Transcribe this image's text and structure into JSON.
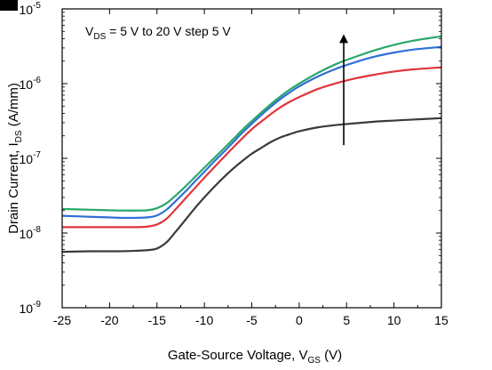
{
  "chart_data": {
    "type": "line",
    "xlabel": {
      "main": "Gate-Source Voltage, V",
      "sub": "GS",
      "unit": " (V)"
    },
    "ylabel": {
      "main": "Drain Current, I",
      "sub": "DS",
      "unit": " (A/mm)"
    },
    "xlim": [
      -25,
      15
    ],
    "ylim_log10": [
      -9,
      -5
    ],
    "yscale": "log",
    "x_ticks": [
      -25,
      -20,
      -15,
      -10,
      -5,
      0,
      5,
      10,
      15
    ],
    "x_tick_labels": [
      "-25",
      "-20",
      "-15",
      "-10",
      "-5",
      "0",
      "5",
      "10",
      "15"
    ],
    "y_ticks": [
      {
        "base": "10",
        "exp": "-9"
      },
      {
        "base": "10",
        "exp": "-8"
      },
      {
        "base": "10",
        "exp": "-7"
      },
      {
        "base": "10",
        "exp": "-6"
      },
      {
        "base": "10",
        "exp": "-5"
      }
    ],
    "annotation": {
      "pre": "V",
      "sub": "DS",
      "post": " = 5 V to 20 V step 5 V"
    },
    "arrow": {
      "x": 4.7,
      "y_from": 1.5e-07,
      "y_to": 4e-06
    },
    "grid": false,
    "legend": "none",
    "series": [
      {
        "color": "#3a3a3a",
        "x": [
          -25,
          -22,
          -19,
          -17,
          -16,
          -15,
          -14,
          -13,
          -12,
          -11,
          -10,
          -9,
          -8,
          -7,
          -6,
          -5,
          -4,
          -3,
          -2,
          -1,
          0,
          2,
          4,
          6,
          8,
          10,
          12,
          15
        ],
        "y": [
          5.6e-09,
          5.7e-09,
          5.7e-09,
          5.8e-09,
          5.9e-09,
          6.2e-09,
          7.5e-09,
          1.05e-08,
          1.5e-08,
          2.15e-08,
          3e-08,
          4.1e-08,
          5.5e-08,
          7.2e-08,
          9.2e-08,
          1.15e-07,
          1.38e-07,
          1.65e-07,
          1.9e-07,
          2.1e-07,
          2.3e-07,
          2.6e-07,
          2.8e-07,
          2.95e-07,
          3.1e-07,
          3.2e-07,
          3.3e-07,
          3.45e-07
        ]
      },
      {
        "color": "#e0353a",
        "x": [
          -25,
          -22,
          -19,
          -17,
          -16,
          -15,
          -14,
          -13,
          -12,
          -11,
          -10,
          -9,
          -8,
          -7,
          -6,
          -5,
          -4,
          -3,
          -2,
          -1,
          0,
          2,
          4,
          6,
          8,
          10,
          12,
          15
        ],
        "y": [
          1.2e-08,
          1.2e-08,
          1.2e-08,
          1.2e-08,
          1.22e-08,
          1.3e-08,
          1.55e-08,
          2.1e-08,
          2.9e-08,
          4e-08,
          5.5e-08,
          7.5e-08,
          1.02e-07,
          1.38e-07,
          1.85e-07,
          2.45e-07,
          3.1e-07,
          3.9e-07,
          4.8e-07,
          5.7e-07,
          6.6e-07,
          8.5e-07,
          1.02e-06,
          1.18e-06,
          1.32e-06,
          1.45e-06,
          1.55e-06,
          1.65e-06
        ]
      },
      {
        "color": "#2f6fd6",
        "x": [
          -25,
          -22,
          -19,
          -17,
          -16,
          -15,
          -14,
          -13,
          -12,
          -11,
          -10,
          -9,
          -8,
          -7,
          -6,
          -5,
          -4,
          -3,
          -2,
          -1,
          0,
          2,
          4,
          6,
          8,
          10,
          12,
          15
        ],
        "y": [
          1.7e-08,
          1.65e-08,
          1.6e-08,
          1.6e-08,
          1.62e-08,
          1.72e-08,
          2.05e-08,
          2.7e-08,
          3.6e-08,
          4.9e-08,
          6.6e-08,
          9e-08,
          1.2e-07,
          1.62e-07,
          2.2e-07,
          2.9e-07,
          3.8e-07,
          4.9e-07,
          6.2e-07,
          7.6e-07,
          9.2e-07,
          1.25e-06,
          1.6e-06,
          1.95e-06,
          2.3e-06,
          2.6e-06,
          2.85e-06,
          3.1e-06
        ]
      },
      {
        "color": "#27a86a",
        "x": [
          -25,
          -22,
          -19,
          -17,
          -16,
          -15,
          -14,
          -13,
          -12,
          -11,
          -10,
          -9,
          -8,
          -7,
          -6,
          -5,
          -4,
          -3,
          -2,
          -1,
          0,
          2,
          4,
          6,
          8,
          10,
          12,
          15
        ],
        "y": [
          2.1e-08,
          2.05e-08,
          2e-08,
          2e-08,
          2.02e-08,
          2.15e-08,
          2.5e-08,
          3.2e-08,
          4.2e-08,
          5.6e-08,
          7.5e-08,
          1e-07,
          1.33e-07,
          1.78e-07,
          2.4e-07,
          3.15e-07,
          4.1e-07,
          5.3e-07,
          6.7e-07,
          8.3e-07,
          1e-06,
          1.4e-06,
          1.85e-06,
          2.3e-06,
          2.8e-06,
          3.3e-06,
          3.75e-06,
          4.3e-06
        ]
      }
    ]
  }
}
